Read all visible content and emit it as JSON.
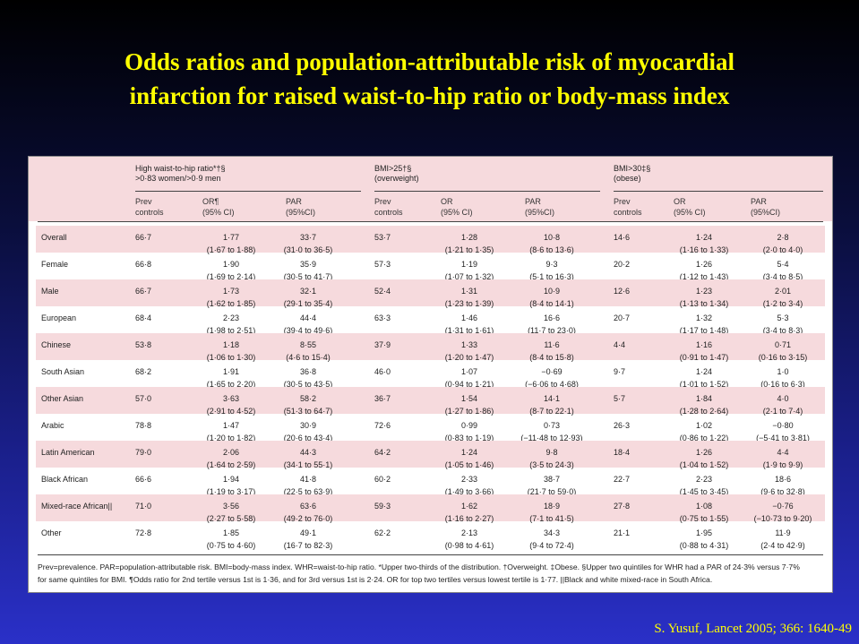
{
  "title": {
    "line1": "Odds ratios and population-attributable risk of myocardial",
    "line2": "infarction for raised waist-to-hip ratio or body-mass index"
  },
  "groups": [
    {
      "line1": "High waist-to-hip ratio*†§",
      "line2": ">0·83 women/>0·9 men"
    },
    {
      "line1": "BMI>25†§",
      "line2": "(overweight)"
    },
    {
      "line1": "BMI>30‡§",
      "line2": "(obese)"
    }
  ],
  "subheaders": {
    "prev1": "Prev",
    "prev2": "controls",
    "or1": "OR",
    "or2": "(95% CI)",
    "orp1": "OR¶",
    "orp2": "(95% CI)",
    "par1": "PAR",
    "par2": "(95%CI)"
  },
  "rows": [
    {
      "label": "Overall",
      "w": [
        "66·7",
        "1·77",
        "(1·67 to 1·88)",
        "33·7",
        "(31·0 to 36·5)"
      ],
      "b25": [
        "53·7",
        "1·28",
        "(1·21 to 1·35)",
        "10·8",
        "(8·6 to 13·6)"
      ],
      "b30": [
        "14·6",
        "1·24",
        "(1·16 to 1·33)",
        "2·8",
        "(2·0 to 4·0)"
      ]
    },
    {
      "label": "Female",
      "w": [
        "66·8",
        "1·90",
        "(1·69 to 2·14)",
        "35·9",
        "(30·5 to 41·7)"
      ],
      "b25": [
        "57·3",
        "1·19",
        "(1·07 to 1·32)",
        "9·3",
        "(5·1 to 16·3)"
      ],
      "b30": [
        "20·2",
        "1·26",
        "(1·12 to 1·43)",
        "5·4",
        "(3·4 to 8·5)"
      ]
    },
    {
      "label": "Male",
      "w": [
        "66·7",
        "1·73",
        "(1·62 to 1·85)",
        "32·1",
        "(29·1 to 35·4)"
      ],
      "b25": [
        "52·4",
        "1·31",
        "(1·23 to 1·39)",
        "10·9",
        "(8·4 to 14·1)"
      ],
      "b30": [
        "12·6",
        "1·23",
        "(1·13 to 1·34)",
        "2·01",
        "(1·2 to 3·4)"
      ]
    },
    {
      "label": "European",
      "w": [
        "68·4",
        "2·23",
        "(1·98 to 2·51)",
        "44·4",
        "(39·4 to 49·6)"
      ],
      "b25": [
        "63·3",
        "1·46",
        "(1·31 to 1·61)",
        "16·6",
        "(11·7 to 23·0)"
      ],
      "b30": [
        "20·7",
        "1·32",
        "(1·17 to 1·48)",
        "5·3",
        "(3·4 to 8·3)"
      ]
    },
    {
      "label": "Chinese",
      "w": [
        "53·8",
        "1·18",
        "(1·06 to 1·30)",
        "8·55",
        "(4·6 to 15·4)"
      ],
      "b25": [
        "37·9",
        "1·33",
        "(1·20 to 1·47)",
        "11·6",
        "(8·4 to 15·8)"
      ],
      "b30": [
        "4·4",
        "1·16",
        "(0·91 to 1·47)",
        "0·71",
        "(0·16 to 3·15)"
      ]
    },
    {
      "label": "South Asian",
      "w": [
        "68·2",
        "1·91",
        "(1·65 to 2·20)",
        "36·8",
        "(30·5 to 43·5)"
      ],
      "b25": [
        "46·0",
        "1·07",
        "(0·94 to 1·21)",
        "−0·69",
        "(−6·06 to 4·68)"
      ],
      "b30": [
        "9·7",
        "1·24",
        "(1·01 to 1·52)",
        "1·0",
        "(0·16 to 6·3)"
      ]
    },
    {
      "label": "Other Asian",
      "w": [
        "57·0",
        "3·63",
        "(2·91 to 4·52)",
        "58·2",
        "(51·3 to 64·7)"
      ],
      "b25": [
        "36·7",
        "1·54",
        "(1·27 to 1·86)",
        "14·1",
        "(8·7 to 22·1)"
      ],
      "b30": [
        "5·7",
        "1·84",
        "(1·28 to 2·64)",
        "4·0",
        "(2·1 to 7·4)"
      ]
    },
    {
      "label": "Arabic",
      "w": [
        "78·8",
        "1·47",
        "(1·20 to 1·82)",
        "30·9",
        "(20·6 to 43·4)"
      ],
      "b25": [
        "72·6",
        "0·99",
        "(0·83 to 1·19)",
        "0·73",
        "(−11·48 to 12·93)"
      ],
      "b30": [
        "26·3",
        "1·02",
        "(0·86 to 1·22)",
        "−0·80",
        "(−5·41 to 3·81)"
      ]
    },
    {
      "label": "Latin American",
      "w": [
        "79·0",
        "2·06",
        "(1·64 to 2·59)",
        "44·3",
        "(34·1 to 55·1)"
      ],
      "b25": [
        "64·2",
        "1·24",
        "(1·05 to 1·46)",
        "9·8",
        "(3·5 to 24·3)"
      ],
      "b30": [
        "18·4",
        "1·26",
        "(1·04 to 1·52)",
        "4·4",
        "(1·9 to 9·9)"
      ]
    },
    {
      "label": "Black African",
      "w": [
        "66·6",
        "1·94",
        "(1·19 to 3·17)",
        "41·8",
        "(22·5 to 63·9)"
      ],
      "b25": [
        "60·2",
        "2·33",
        "(1·49 to 3·66)",
        "38·7",
        "(21·7 to 59·0)"
      ],
      "b30": [
        "22·7",
        "2·23",
        "(1·45 to 3·45)",
        "18·6",
        "(9·6 to 32·8)"
      ]
    },
    {
      "label": "Mixed-race African||",
      "w": [
        "71·0",
        "3·56",
        "(2·27 to 5·58)",
        "63·6",
        "(49·2 to 76·0)"
      ],
      "b25": [
        "59·3",
        "1·62",
        "(1·16 to 2·27)",
        "18·9",
        "(7·1 to 41·5)"
      ],
      "b30": [
        "27·8",
        "1·08",
        "(0·75 to 1·55)",
        "−0·76",
        "(−10·73 to 9·20)"
      ]
    },
    {
      "label": "Other",
      "w": [
        "72·8",
        "1·85",
        "(0·75 to 4·60)",
        "49·1",
        "(16·7 to 82·3)"
      ],
      "b25": [
        "62·2",
        "2·13",
        "(0·98 to 4·61)",
        "34·3",
        "(9·4 to 72·4)"
      ],
      "b30": [
        "21·1",
        "1·95",
        "(0·88 to 4·31)",
        "11·9",
        "(2·4 to 42·9)"
      ]
    }
  ],
  "footnote": {
    "line1": "Prev=prevalence. PAR=population-attributable risk. BMI=body-mass index. WHR=waist-to-hip ratio. *Upper two-thirds of the distribution. †Overweight. ‡Obese. §Upper two quintiles for WHR had a PAR of 24·3% versus 7·7%",
    "line2": "for same quintiles for BMI. ¶Odds ratio for 2nd tertile versus 1st is 1·36, and for 3rd versus 1st is 2·24. OR for top two tertiles versus lowest tertile is 1·77. ||Black and white mixed-race in South Africa."
  },
  "citation": "S. Yusuf, Lancet 2005; 366: 1640-49"
}
